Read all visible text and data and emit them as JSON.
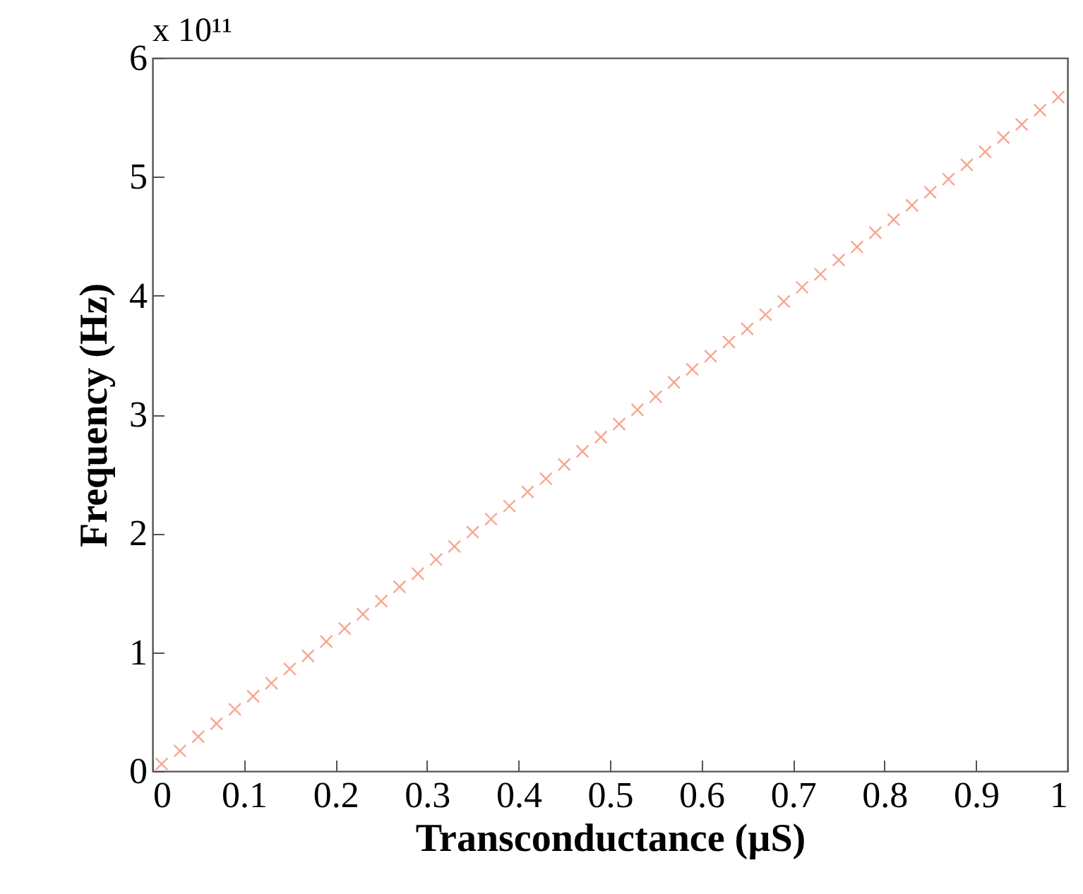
{
  "chart_data": {
    "type": "scatter",
    "xlabel": "Transconductance (µS)",
    "ylabel": "Frequency (Hz)",
    "annotations": [
      "x 10¹¹"
    ],
    "x": [
      0.01,
      0.03,
      0.05,
      0.07,
      0.09,
      0.11,
      0.13,
      0.15,
      0.17,
      0.19,
      0.21,
      0.23,
      0.25,
      0.27,
      0.29,
      0.31,
      0.33,
      0.35,
      0.37,
      0.39,
      0.41,
      0.43,
      0.45,
      0.47,
      0.49,
      0.51,
      0.53,
      0.55,
      0.57,
      0.59,
      0.61,
      0.63,
      0.65,
      0.67,
      0.69,
      0.71,
      0.73,
      0.75,
      0.77,
      0.79,
      0.81,
      0.83,
      0.85,
      0.87,
      0.89,
      0.91,
      0.93,
      0.95,
      0.97,
      0.99
    ],
    "series": [
      {
        "color": "#f8a68f",
        "values": [
          0.06,
          0.17,
          0.29,
          0.4,
          0.52,
          0.63,
          0.74,
          0.86,
          0.97,
          1.09,
          1.2,
          1.32,
          1.43,
          1.55,
          1.66,
          1.78,
          1.89,
          2.01,
          2.12,
          2.23,
          2.35,
          2.46,
          2.58,
          2.69,
          2.81,
          2.92,
          3.04,
          3.15,
          3.27,
          3.38,
          3.49,
          3.61,
          3.72,
          3.84,
          3.95,
          4.07,
          4.18,
          4.3,
          4.41,
          4.53,
          4.64,
          4.76,
          4.87,
          4.98,
          5.1,
          5.21,
          5.33,
          5.44,
          5.56,
          5.67
        ]
      }
    ],
    "xlim": [
      0,
      1
    ],
    "xticks": [
      0,
      0.1,
      0.2,
      0.3,
      0.4,
      0.5,
      0.6,
      0.7,
      0.8,
      0.9,
      1
    ],
    "ylim": [
      0,
      6
    ],
    "yticks": [
      0,
      1,
      2,
      3,
      4,
      5,
      6
    ],
    "marker": "cross",
    "grid": false
  }
}
